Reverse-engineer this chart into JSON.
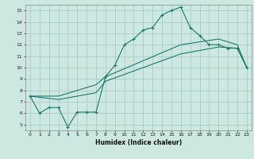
{
  "xlabel": "Humidex (Indice chaleur)",
  "bg_color": "#cce8e0",
  "grid_color": "#aacccc",
  "line_color": "#1a7a6e",
  "xlim": [
    -0.5,
    23.5
  ],
  "ylim": [
    4.5,
    15.5
  ],
  "yticks": [
    5,
    6,
    7,
    8,
    9,
    10,
    11,
    12,
    13,
    14,
    15
  ],
  "xticks": [
    0,
    1,
    2,
    3,
    4,
    5,
    6,
    7,
    8,
    9,
    10,
    11,
    12,
    13,
    14,
    15,
    16,
    17,
    18,
    19,
    20,
    21,
    22,
    23
  ],
  "line1_x": [
    0,
    1,
    2,
    3,
    4,
    5,
    6,
    7,
    8,
    9,
    10,
    11,
    12,
    13,
    14,
    15,
    16,
    17,
    18,
    19,
    20,
    21,
    22,
    23
  ],
  "line1_y": [
    7.5,
    6.0,
    6.5,
    6.5,
    4.8,
    6.1,
    6.1,
    6.1,
    9.2,
    10.2,
    12.0,
    12.5,
    13.3,
    13.5,
    14.6,
    15.0,
    15.3,
    13.5,
    12.8,
    12.0,
    12.0,
    11.7,
    11.7,
    10.0
  ],
  "line2_x": [
    0,
    3,
    7,
    8,
    16,
    20,
    22,
    23
  ],
  "line2_y": [
    7.5,
    7.2,
    7.8,
    8.8,
    11.2,
    11.8,
    11.7,
    10.0
  ],
  "line3_x": [
    0,
    3,
    7,
    8,
    16,
    20,
    22,
    23
  ],
  "line3_y": [
    7.5,
    7.5,
    8.5,
    9.2,
    12.0,
    12.5,
    12.0,
    10.0
  ]
}
